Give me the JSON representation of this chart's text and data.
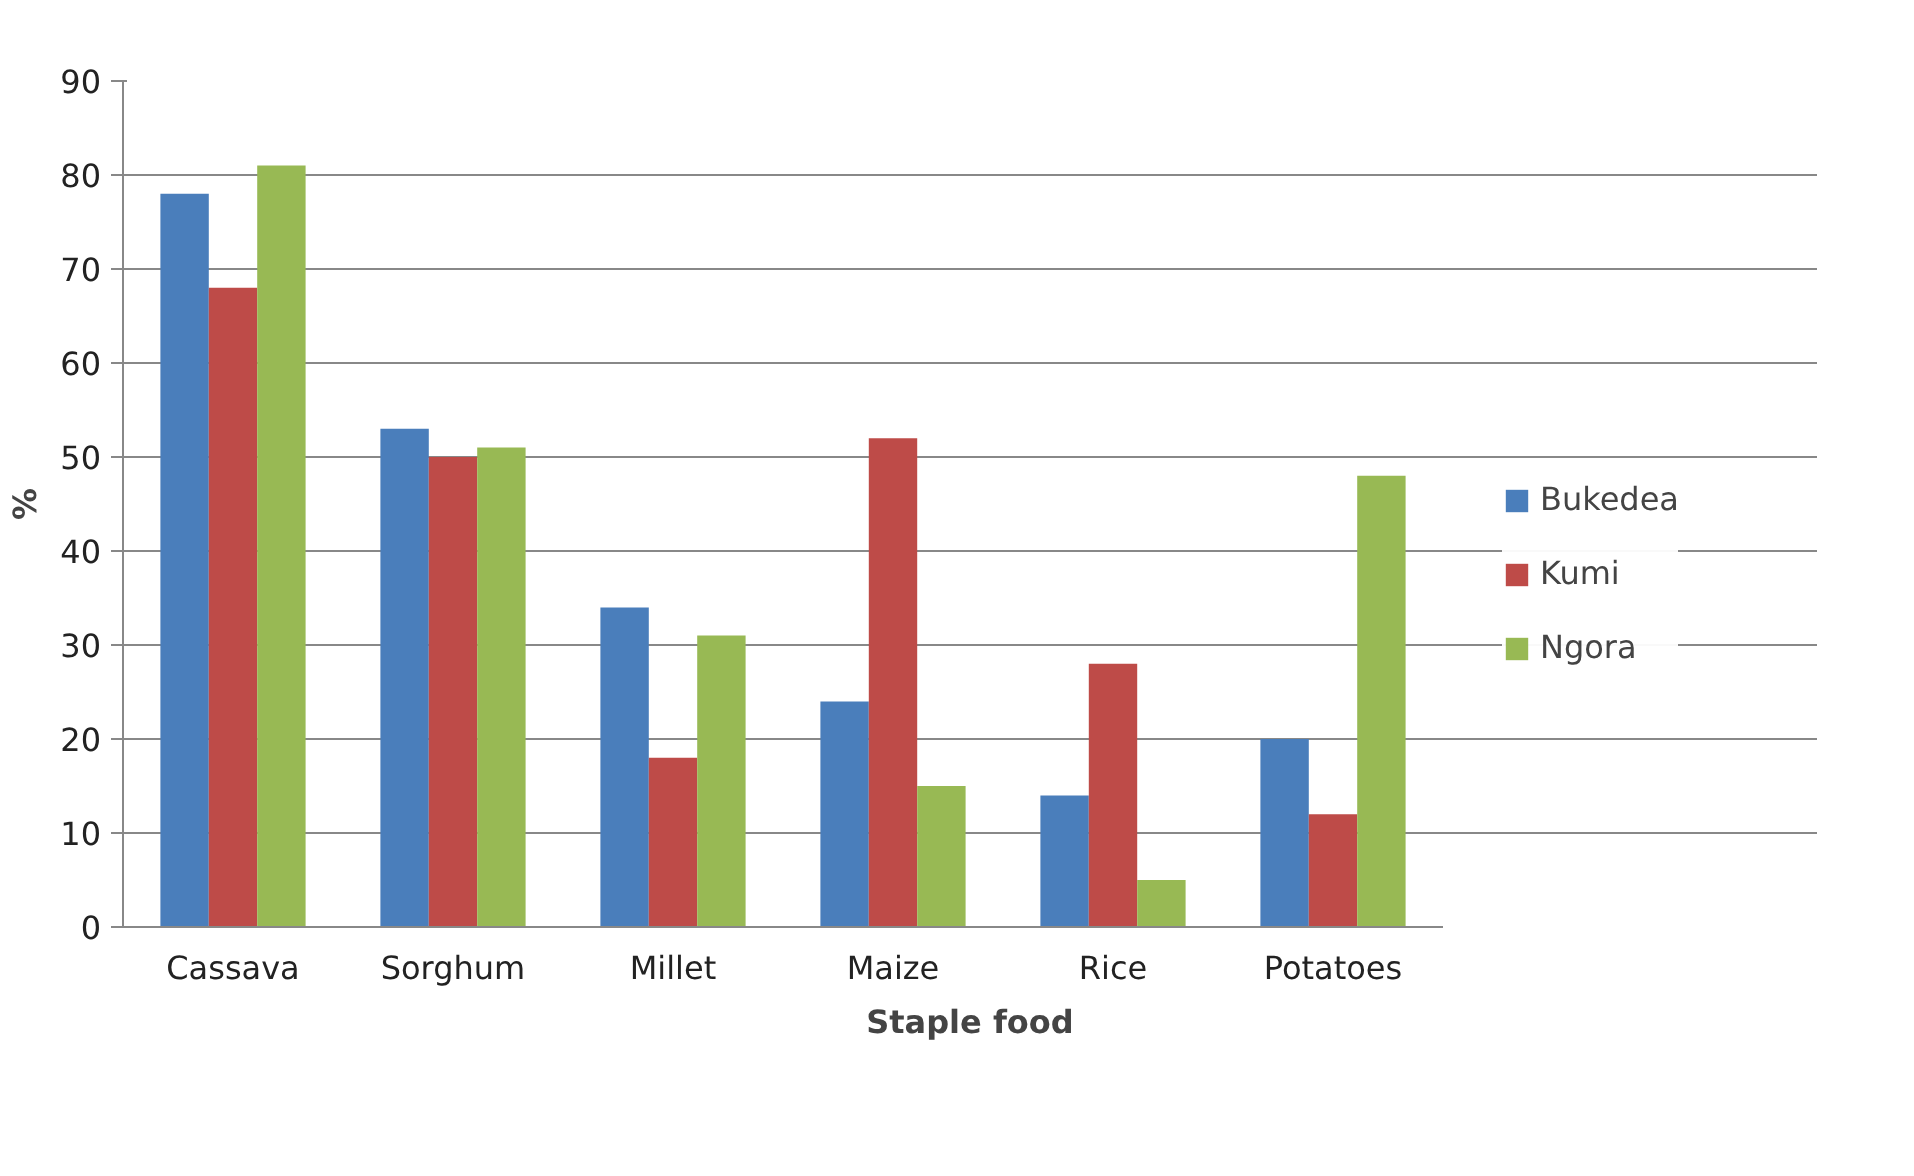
{
  "chart_data": {
    "type": "bar",
    "xlabel": "Staple food",
    "ylabel": "%",
    "categories": [
      "Cassava",
      "Sorghum",
      "Millet",
      "Maize",
      "Rice",
      "Potatoes"
    ],
    "series": [
      {
        "name": "Bukedea",
        "color": "#4a7ebb",
        "values": [
          78,
          53,
          34,
          24,
          14,
          20
        ]
      },
      {
        "name": "Kumi",
        "color": "#be4b48",
        "values": [
          68,
          50,
          18,
          52,
          28,
          12
        ]
      },
      {
        "name": "Ngora",
        "color": "#98b954",
        "values": [
          81,
          51,
          31,
          15,
          5,
          48
        ]
      }
    ],
    "ylim": [
      0,
      90
    ],
    "yticks": [
      0,
      10,
      20,
      30,
      40,
      50,
      60,
      70,
      80,
      90
    ],
    "grid": "y",
    "legend": "right"
  }
}
